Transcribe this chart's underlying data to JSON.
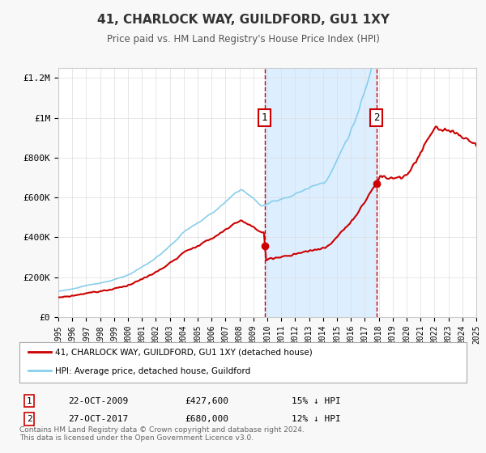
{
  "title": "41, CHARLOCK WAY, GUILDFORD, GU1 1XY",
  "subtitle": "Price paid vs. HM Land Registry's House Price Index (HPI)",
  "legend_label1": "41, CHARLOCK WAY, GUILDFORD, GU1 1XY (detached house)",
  "legend_label2": "HPI: Average price, detached house, Guildford",
  "sale1_date": "22-OCT-2009",
  "sale1_price": "£427,600",
  "sale1_hpi": "15% ↓ HPI",
  "sale2_date": "27-OCT-2017",
  "sale2_price": "£680,000",
  "sale2_hpi": "12% ↓ HPI",
  "footer": "Contains HM Land Registry data © Crown copyright and database right 2024.\nThis data is licensed under the Open Government Licence v3.0.",
  "bg_color": "#f8f8f8",
  "plot_bg_color": "#ffffff",
  "hpi_color": "#87CEEB",
  "price_color": "#cc0000",
  "sale1_x": 2009.81,
  "sale2_x": 2017.82,
  "shade_color": "#ddeeff",
  "vline_color": "#cc0000",
  "ylim": [
    0,
    1250000
  ],
  "xlim_start": 1995,
  "xlim_end": 2025
}
